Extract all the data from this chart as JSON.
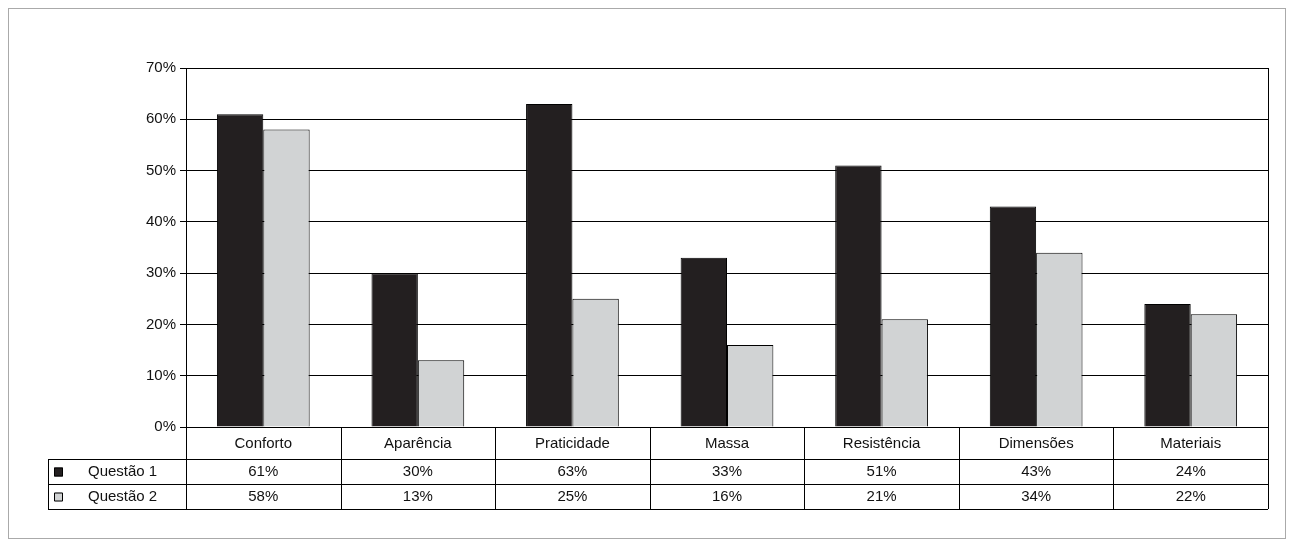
{
  "chart_data": {
    "type": "bar",
    "categories": [
      "Conforto",
      "Aparência",
      "Praticidade",
      "Massa",
      "Resistência",
      "Dimensões",
      "Materiais"
    ],
    "series": [
      {
        "name": "Questão 1",
        "color": "#231f20",
        "values": [
          61,
          30,
          63,
          33,
          51,
          43,
          24
        ],
        "value_labels": [
          "61%",
          "30%",
          "63%",
          "33%",
          "51%",
          "43%",
          "24%"
        ]
      },
      {
        "name": "Questão 2",
        "color": "#d1d3d4",
        "values": [
          58,
          13,
          25,
          16,
          21,
          34,
          22
        ],
        "value_labels": [
          "58%",
          "13%",
          "25%",
          "16%",
          "21%",
          "34%",
          "22%"
        ]
      }
    ],
    "ylim": [
      0,
      70
    ],
    "yticks": [
      {
        "value": 0,
        "label": "0%"
      },
      {
        "value": 10,
        "label": "10%"
      },
      {
        "value": 20,
        "label": "20%"
      },
      {
        "value": 30,
        "label": "30%"
      },
      {
        "value": 40,
        "label": "40%"
      },
      {
        "value": 50,
        "label": "50%"
      },
      {
        "value": 60,
        "label": "60%"
      },
      {
        "value": 70,
        "label": "70%"
      }
    ],
    "grid": "y",
    "legend": "bottom"
  }
}
